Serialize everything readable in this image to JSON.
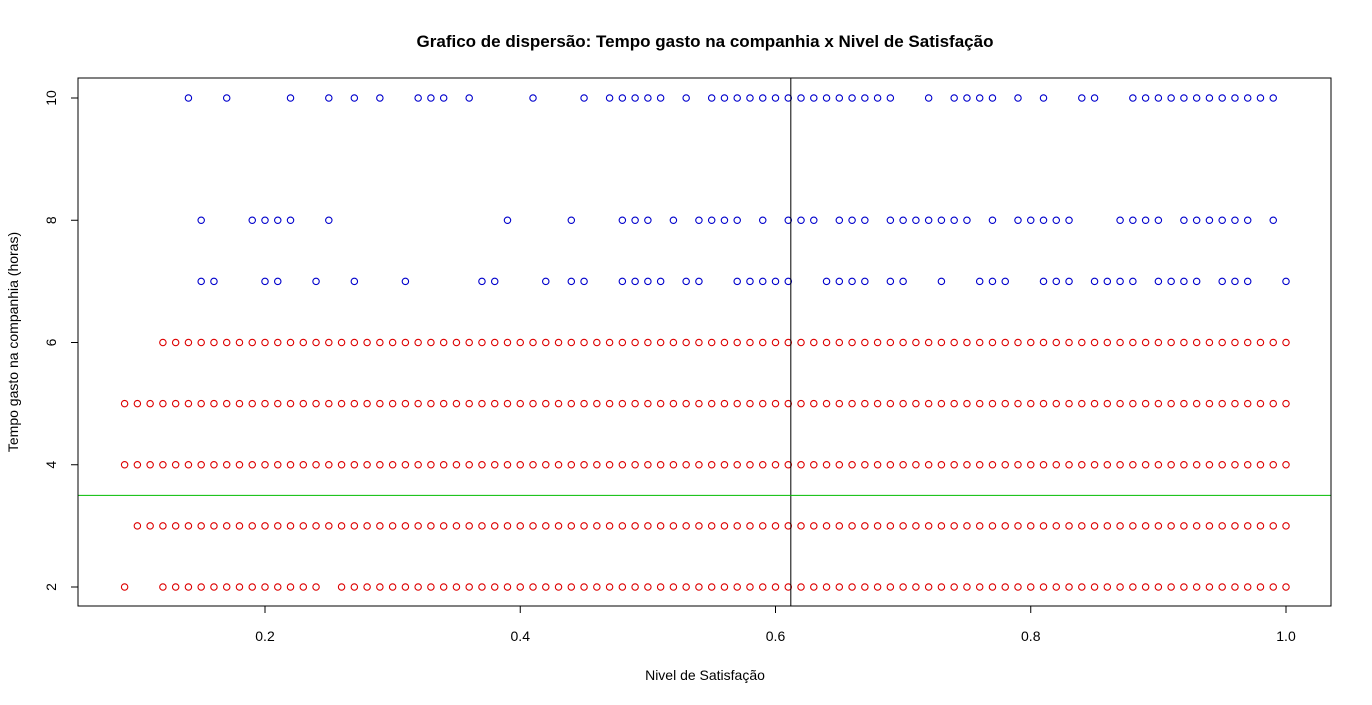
{
  "chart_data": {
    "type": "scatter",
    "title": "Grafico de dispersão: Tempo gasto na companhia x Nivel de Satisfação",
    "xlabel": "Nivel de Satisfação",
    "ylabel": "Tempo gasto na companhia (horas)",
    "xlim": [
      0.09,
      1.0
    ],
    "ylim": [
      2,
      10
    ],
    "xticks": [
      "0.2",
      "0.4",
      "0.6",
      "0.8",
      "1.0"
    ],
    "yticks": [
      "2",
      "4",
      "6",
      "8",
      "10"
    ],
    "grid": false,
    "marker": "open-circle",
    "colors": {
      "low_tenure": "#dd0000",
      "high_tenure": "#0000cc",
      "vline": "#000000",
      "hline": "#00bb00"
    },
    "reference_lines": {
      "vertical_x": 0.612,
      "horizontal_y": 3.5
    },
    "series": [
      {
        "color": "#dd0000",
        "points": [
          {
            "y": 2,
            "x": [
              0.09,
              0.12,
              0.13,
              0.14,
              0.15,
              0.16,
              0.17,
              0.18,
              0.19,
              0.2,
              0.21,
              0.22,
              0.23,
              0.24,
              0.26,
              0.27,
              0.28,
              0.29,
              0.3,
              0.31,
              0.32,
              0.33,
              0.34,
              0.35,
              0.36,
              0.37,
              0.38,
              0.39,
              0.4,
              0.41,
              0.42,
              0.43,
              0.44,
              0.45,
              0.46,
              0.47,
              0.48,
              0.49,
              0.5,
              0.51,
              0.52,
              0.53,
              0.54,
              0.55,
              0.56,
              0.57,
              0.58,
              0.59,
              0.6,
              0.61,
              0.62,
              0.63,
              0.64,
              0.65,
              0.66,
              0.67,
              0.68,
              0.69,
              0.7,
              0.71,
              0.72,
              0.73,
              0.74,
              0.75,
              0.76,
              0.77,
              0.78,
              0.79,
              0.8,
              0.81,
              0.82,
              0.83,
              0.84,
              0.85,
              0.86,
              0.87,
              0.88,
              0.89,
              0.9,
              0.91,
              0.92,
              0.93,
              0.94,
              0.95,
              0.96,
              0.97,
              0.98,
              0.99,
              1.0
            ]
          },
          {
            "y": 3,
            "x": [
              0.1,
              0.11,
              0.12,
              0.13,
              0.14,
              0.15,
              0.16,
              0.17,
              0.18,
              0.19,
              0.2,
              0.21,
              0.22,
              0.23,
              0.24,
              0.25,
              0.26,
              0.27,
              0.28,
              0.29,
              0.3,
              0.31,
              0.32,
              0.33,
              0.34,
              0.35,
              0.36,
              0.37,
              0.38,
              0.39,
              0.4,
              0.41,
              0.42,
              0.43,
              0.44,
              0.45,
              0.46,
              0.47,
              0.48,
              0.49,
              0.5,
              0.51,
              0.52,
              0.53,
              0.54,
              0.55,
              0.56,
              0.57,
              0.58,
              0.59,
              0.6,
              0.61,
              0.62,
              0.63,
              0.64,
              0.65,
              0.66,
              0.67,
              0.68,
              0.69,
              0.7,
              0.71,
              0.72,
              0.73,
              0.74,
              0.75,
              0.76,
              0.77,
              0.78,
              0.79,
              0.8,
              0.81,
              0.82,
              0.83,
              0.84,
              0.85,
              0.86,
              0.87,
              0.88,
              0.89,
              0.9,
              0.91,
              0.92,
              0.93,
              0.94,
              0.95,
              0.96,
              0.97,
              0.98,
              0.99,
              1.0
            ]
          },
          {
            "y": 4,
            "x": [
              0.09,
              0.1,
              0.11,
              0.12,
              0.13,
              0.14,
              0.15,
              0.16,
              0.17,
              0.18,
              0.19,
              0.2,
              0.21,
              0.22,
              0.23,
              0.24,
              0.25,
              0.26,
              0.27,
              0.28,
              0.29,
              0.3,
              0.31,
              0.32,
              0.33,
              0.34,
              0.35,
              0.36,
              0.37,
              0.38,
              0.39,
              0.4,
              0.41,
              0.42,
              0.43,
              0.44,
              0.45,
              0.46,
              0.47,
              0.48,
              0.49,
              0.5,
              0.51,
              0.52,
              0.53,
              0.54,
              0.55,
              0.56,
              0.57,
              0.58,
              0.59,
              0.6,
              0.61,
              0.62,
              0.63,
              0.64,
              0.65,
              0.66,
              0.67,
              0.68,
              0.69,
              0.7,
              0.71,
              0.72,
              0.73,
              0.74,
              0.75,
              0.76,
              0.77,
              0.78,
              0.79,
              0.8,
              0.81,
              0.82,
              0.83,
              0.84,
              0.85,
              0.86,
              0.87,
              0.88,
              0.89,
              0.9,
              0.91,
              0.92,
              0.93,
              0.94,
              0.95,
              0.96,
              0.97,
              0.98,
              0.99,
              1.0
            ]
          },
          {
            "y": 5,
            "x": [
              0.09,
              0.1,
              0.11,
              0.12,
              0.13,
              0.14,
              0.15,
              0.16,
              0.17,
              0.18,
              0.19,
              0.2,
              0.21,
              0.22,
              0.23,
              0.24,
              0.25,
              0.26,
              0.27,
              0.28,
              0.29,
              0.3,
              0.31,
              0.32,
              0.33,
              0.34,
              0.35,
              0.36,
              0.37,
              0.38,
              0.39,
              0.4,
              0.41,
              0.42,
              0.43,
              0.44,
              0.45,
              0.46,
              0.47,
              0.48,
              0.49,
              0.5,
              0.51,
              0.52,
              0.53,
              0.54,
              0.55,
              0.56,
              0.57,
              0.58,
              0.59,
              0.6,
              0.61,
              0.62,
              0.63,
              0.64,
              0.65,
              0.66,
              0.67,
              0.68,
              0.69,
              0.7,
              0.71,
              0.72,
              0.73,
              0.74,
              0.75,
              0.76,
              0.77,
              0.78,
              0.79,
              0.8,
              0.81,
              0.82,
              0.83,
              0.84,
              0.85,
              0.86,
              0.87,
              0.88,
              0.89,
              0.9,
              0.91,
              0.92,
              0.93,
              0.94,
              0.95,
              0.96,
              0.97,
              0.98,
              0.99,
              1.0
            ]
          },
          {
            "y": 6,
            "x": [
              0.12,
              0.13,
              0.14,
              0.15,
              0.16,
              0.17,
              0.18,
              0.19,
              0.2,
              0.21,
              0.22,
              0.23,
              0.24,
              0.25,
              0.26,
              0.27,
              0.28,
              0.29,
              0.3,
              0.31,
              0.32,
              0.33,
              0.34,
              0.35,
              0.36,
              0.37,
              0.38,
              0.39,
              0.4,
              0.41,
              0.42,
              0.43,
              0.44,
              0.45,
              0.46,
              0.47,
              0.48,
              0.49,
              0.5,
              0.51,
              0.52,
              0.53,
              0.54,
              0.55,
              0.56,
              0.57,
              0.58,
              0.59,
              0.6,
              0.61,
              0.62,
              0.63,
              0.64,
              0.65,
              0.66,
              0.67,
              0.68,
              0.69,
              0.7,
              0.71,
              0.72,
              0.73,
              0.74,
              0.75,
              0.76,
              0.77,
              0.78,
              0.79,
              0.8,
              0.81,
              0.82,
              0.83,
              0.84,
              0.85,
              0.86,
              0.87,
              0.88,
              0.89,
              0.9,
              0.91,
              0.92,
              0.93,
              0.94,
              0.95,
              0.96,
              0.97,
              0.98,
              0.99,
              1.0
            ]
          }
        ]
      },
      {
        "color": "#0000cc",
        "points": [
          {
            "y": 7,
            "x": [
              0.15,
              0.16,
              0.2,
              0.21,
              0.24,
              0.27,
              0.31,
              0.37,
              0.38,
              0.42,
              0.44,
              0.45,
              0.48,
              0.49,
              0.5,
              0.51,
              0.53,
              0.54,
              0.57,
              0.58,
              0.59,
              0.6,
              0.61,
              0.64,
              0.65,
              0.66,
              0.67,
              0.69,
              0.7,
              0.73,
              0.76,
              0.77,
              0.78,
              0.81,
              0.82,
              0.83,
              0.85,
              0.86,
              0.87,
              0.88,
              0.9,
              0.91,
              0.92,
              0.93,
              0.95,
              0.96,
              0.97,
              1.0
            ]
          },
          {
            "y": 8,
            "x": [
              0.15,
              0.19,
              0.2,
              0.21,
              0.22,
              0.25,
              0.39,
              0.44,
              0.48,
              0.49,
              0.5,
              0.52,
              0.54,
              0.55,
              0.56,
              0.57,
              0.59,
              0.61,
              0.62,
              0.63,
              0.65,
              0.66,
              0.67,
              0.69,
              0.7,
              0.71,
              0.72,
              0.73,
              0.74,
              0.75,
              0.77,
              0.79,
              0.8,
              0.81,
              0.82,
              0.83,
              0.87,
              0.88,
              0.89,
              0.9,
              0.92,
              0.93,
              0.94,
              0.95,
              0.96,
              0.97,
              0.99
            ]
          },
          {
            "y": 10,
            "x": [
              0.14,
              0.17,
              0.22,
              0.25,
              0.27,
              0.29,
              0.32,
              0.33,
              0.34,
              0.36,
              0.41,
              0.45,
              0.47,
              0.48,
              0.49,
              0.5,
              0.51,
              0.53,
              0.55,
              0.56,
              0.57,
              0.58,
              0.59,
              0.6,
              0.61,
              0.62,
              0.63,
              0.64,
              0.65,
              0.66,
              0.67,
              0.68,
              0.69,
              0.72,
              0.74,
              0.75,
              0.76,
              0.77,
              0.79,
              0.81,
              0.84,
              0.85,
              0.88,
              0.89,
              0.9,
              0.91,
              0.92,
              0.93,
              0.94,
              0.95,
              0.96,
              0.97,
              0.98,
              0.99
            ]
          }
        ]
      }
    ]
  }
}
